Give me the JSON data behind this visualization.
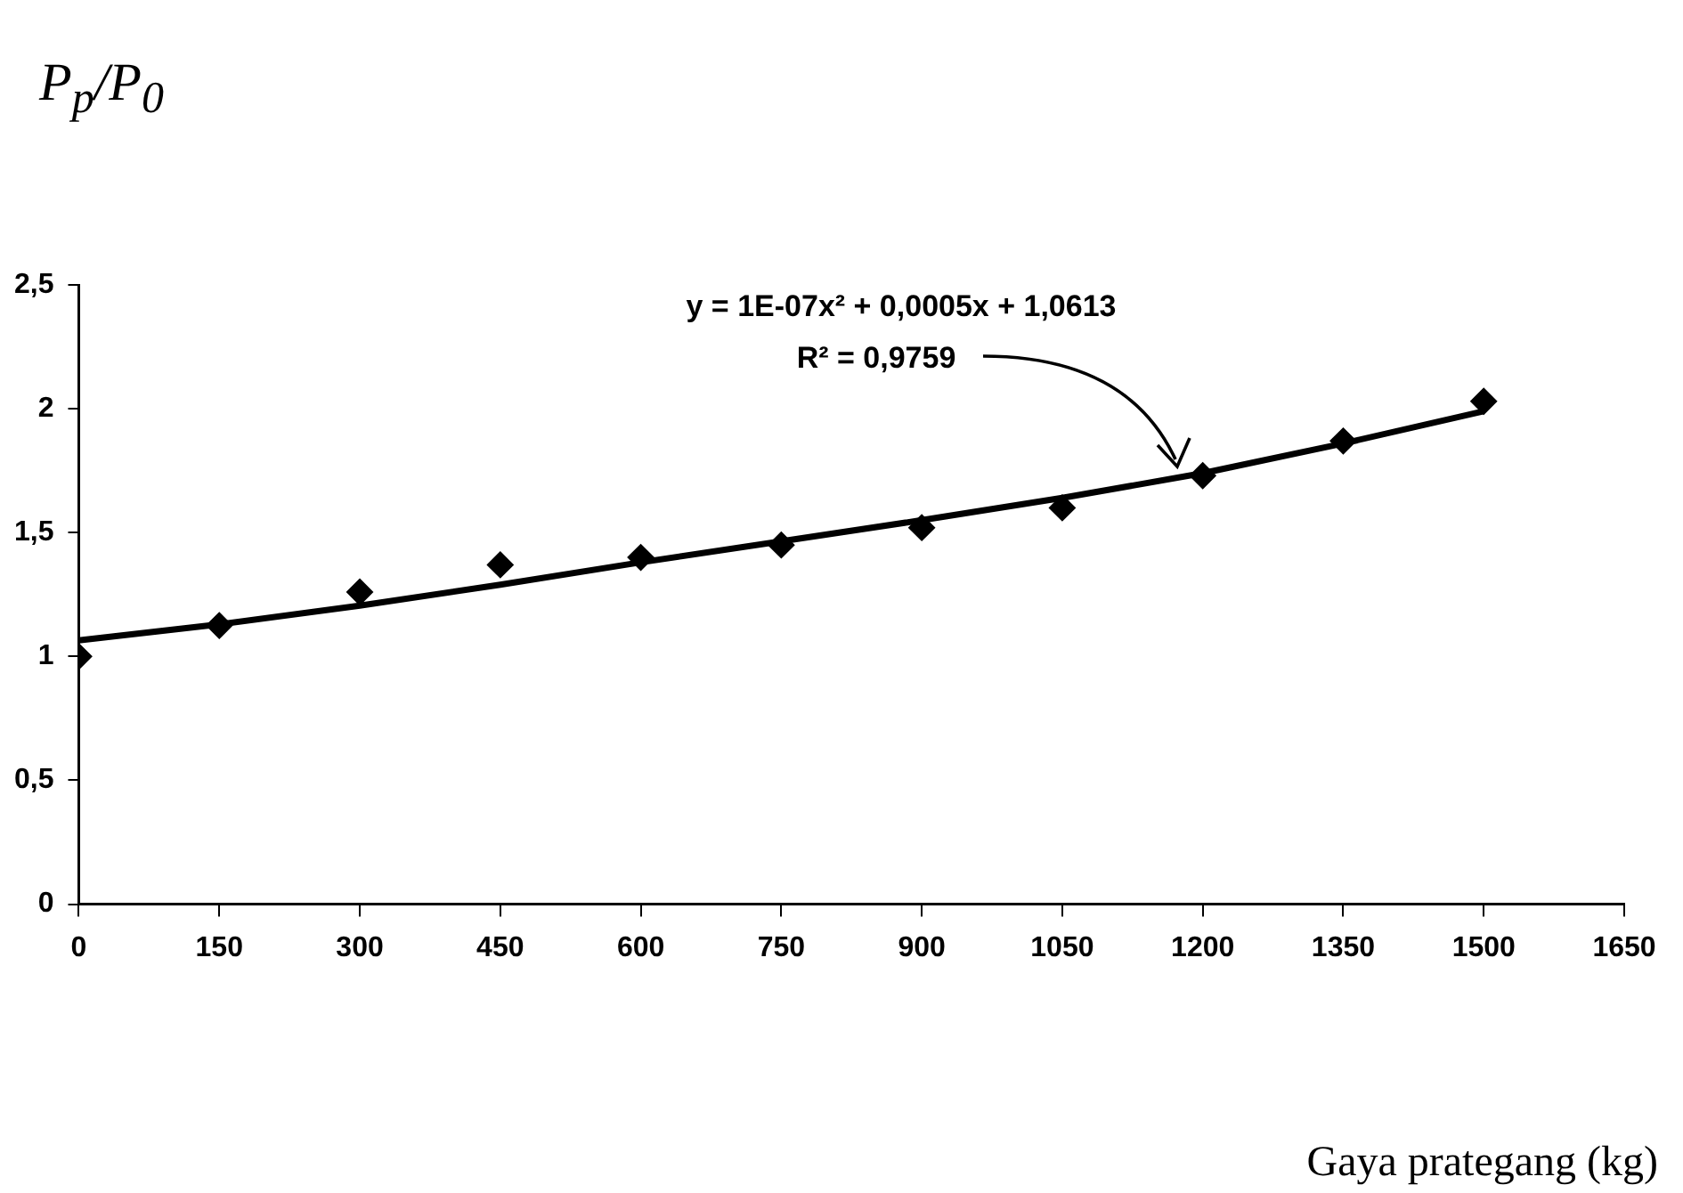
{
  "chart_data": {
    "type": "scatter",
    "xlabel": "Gaya prategang (kg)",
    "ylabel": "P$_{p}$/P$_{0}$",
    "annotations": [
      "y = 1E-07x² + 0,0005x + 1,0613",
      "R² = 0,9759"
    ],
    "x": [
      0,
      150,
      300,
      450,
      600,
      750,
      900,
      1050,
      1200,
      1350,
      1500
    ],
    "series": [
      {
        "color": "#000000",
        "marker": "diamond",
        "values": [
          1.0,
          1.125,
          1.26,
          1.37,
          1.4,
          1.45,
          1.52,
          1.6,
          1.73,
          1.87,
          2.03
        ]
      },
      {
        "type": "line",
        "color": "#000000",
        "marker": "none",
        "line_style": "solid",
        "x": [
          0,
          150,
          300,
          450,
          600,
          750,
          900,
          1050,
          1200,
          1350,
          1500
        ],
        "values": [
          1.065,
          1.13,
          1.205,
          1.29,
          1.38,
          1.465,
          1.55,
          1.64,
          1.74,
          1.86,
          1.99
        ]
      }
    ],
    "xlim": [
      0,
      1650
    ],
    "xticks": [
      0,
      150,
      300,
      450,
      600,
      750,
      900,
      1050,
      1200,
      1350,
      1500,
      1650
    ],
    "ylim": [
      0,
      2.5
    ],
    "yticks": [
      0,
      {
        "value": 0.5,
        "label": "0,5"
      },
      1,
      {
        "value": 1.5,
        "label": "1,5"
      },
      2,
      {
        "value": 2.5,
        "label": "2,5"
      }
    ],
    "grid": false,
    "legend": false
  }
}
